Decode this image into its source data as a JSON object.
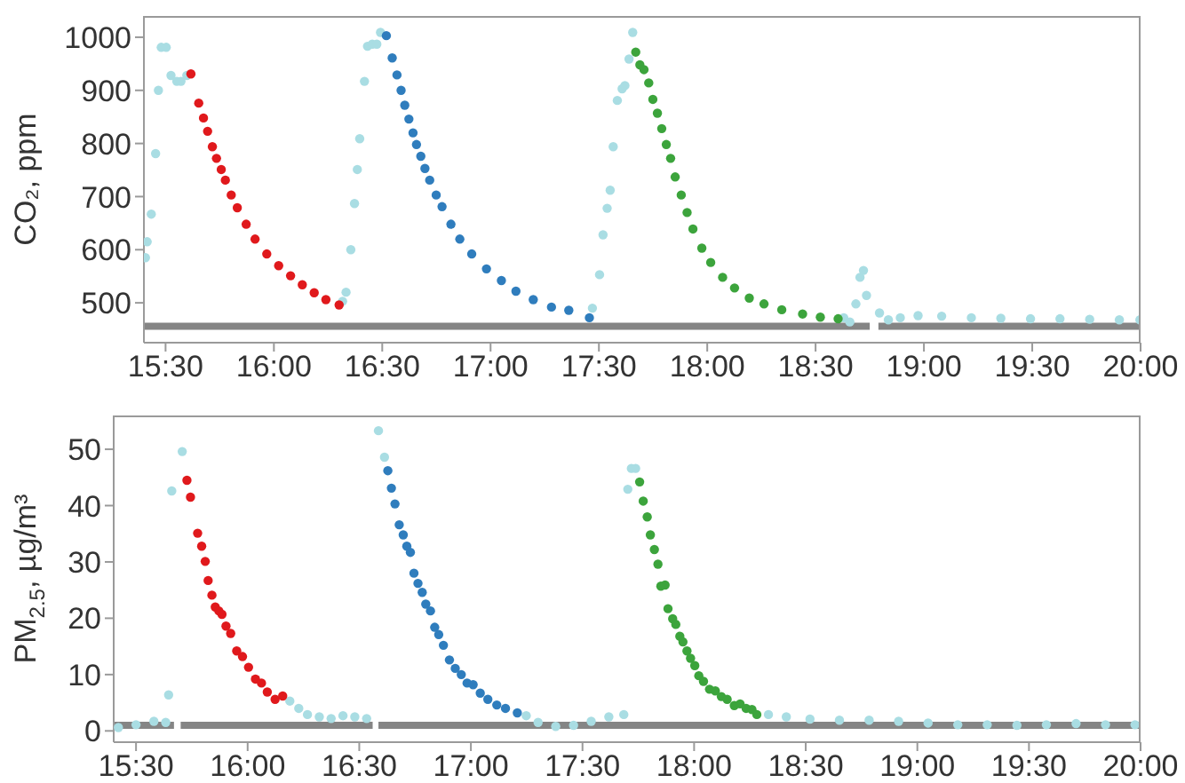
{
  "chart_data": [
    {
      "type": "scatter",
      "ylabel": "CO₂, ppm",
      "marker": "circle",
      "xlim": [
        15.4,
        20
      ],
      "xticks": [
        {
          "value": 15.5,
          "label": "15:30"
        },
        {
          "value": 16,
          "label": "16:00"
        },
        {
          "value": 16.5,
          "label": "16:30"
        },
        {
          "value": 17,
          "label": "17:00"
        },
        {
          "value": 17.5,
          "label": "17:30"
        },
        {
          "value": 18,
          "label": "18:00"
        },
        {
          "value": 18.5,
          "label": "18:30"
        },
        {
          "value": 19,
          "label": "19:00"
        },
        {
          "value": 19.5,
          "label": "19:30"
        },
        {
          "value": 20,
          "label": "20:00"
        }
      ],
      "ylim": [
        425,
        1040
      ],
      "yticks": [
        500,
        600,
        700,
        800,
        900,
        1000
      ],
      "series": [
        {
          "type": "line",
          "marker": "none",
          "color": "#858585",
          "x": [
            15.4,
            18.75,
            18.77,
            18.79,
            20
          ],
          "values": [
            456,
            456,
            null,
            456,
            456
          ]
        },
        {
          "color": "#a9dde3",
          "x": [
            15.407,
            15.415,
            15.434,
            15.454,
            15.467,
            15.48,
            15.503,
            15.525,
            15.552,
            15.571,
            15.598,
            16.317,
            16.333,
            16.355,
            16.372,
            16.385,
            16.396,
            16.418,
            16.432,
            16.454,
            16.475,
            16.492,
            17.47,
            17.503,
            17.519,
            17.538,
            17.552,
            17.566,
            17.585,
            17.607,
            17.62,
            17.639,
            17.656,
            18.63,
            18.658,
            18.686,
            18.705,
            18.721,
            18.735,
            18.795,
            18.836,
            18.891,
            18.973,
            19.082,
            19.219,
            19.355,
            19.492,
            19.628,
            19.765,
            19.902,
            19.997
          ],
          "values": [
            585,
            615,
            667,
            781,
            900,
            981,
            981,
            928,
            917,
            917,
            928,
            503,
            520,
            600,
            687,
            751,
            809,
            917,
            983,
            987,
            987,
            1009,
            490,
            553,
            628,
            678,
            712,
            794,
            881,
            903,
            909,
            959,
            1009,
            472,
            464,
            498,
            548,
            561,
            514,
            481,
            468,
            472,
            476,
            475,
            472,
            471,
            470,
            470,
            469,
            468,
            468
          ]
        },
        {
          "color": "#e0191c",
          "x": [
            15.617,
            15.653,
            15.675,
            15.694,
            15.716,
            15.735,
            15.757,
            15.776,
            15.803,
            15.831,
            15.872,
            15.913,
            15.967,
            16.022,
            16.077,
            16.131,
            16.186,
            16.24,
            16.301
          ],
          "values": [
            931,
            876,
            848,
            823,
            794,
            772,
            751,
            731,
            703,
            679,
            648,
            620,
            592,
            570,
            551,
            534,
            519,
            506,
            496
          ]
        },
        {
          "color": "#2f7dbd",
          "x": [
            16.519,
            16.546,
            16.568,
            16.587,
            16.604,
            16.623,
            16.642,
            16.658,
            16.678,
            16.697,
            16.719,
            16.749,
            16.776,
            16.817,
            16.858,
            16.913,
            16.981,
            17.05,
            17.117,
            17.197,
            17.281,
            17.361,
            17.456
          ],
          "values": [
            1003,
            961,
            929,
            900,
            872,
            846,
            820,
            798,
            776,
            753,
            731,
            703,
            681,
            648,
            620,
            592,
            564,
            542,
            522,
            506,
            492,
            486,
            472
          ]
        },
        {
          "color": "#3ca43c",
          "x": [
            17.67,
            17.689,
            17.708,
            17.73,
            17.749,
            17.77,
            17.79,
            17.811,
            17.831,
            17.852,
            17.88,
            17.907,
            17.934,
            17.975,
            18.016,
            18.071,
            18.126,
            18.194,
            18.262,
            18.344,
            18.44,
            18.522,
            18.604
          ],
          "values": [
            972,
            948,
            939,
            914,
            883,
            857,
            828,
            798,
            772,
            737,
            703,
            670,
            639,
            603,
            576,
            548,
            528,
            509,
            498,
            487,
            479,
            473,
            470
          ]
        }
      ]
    },
    {
      "type": "scatter",
      "ylabel": "PM$_{2.5}$, µg/m³",
      "marker": "circle",
      "xlim": [
        15.4,
        20
      ],
      "xticks": [
        {
          "value": 15.5,
          "label": "15:30"
        },
        {
          "value": 16,
          "label": "16:00"
        },
        {
          "value": 16.5,
          "label": "16:30"
        },
        {
          "value": 17,
          "label": "17:00"
        },
        {
          "value": 17.5,
          "label": "17:30"
        },
        {
          "value": 18,
          "label": "18:00"
        },
        {
          "value": 18.5,
          "label": "18:30"
        },
        {
          "value": 19,
          "label": "19:00"
        },
        {
          "value": 19.5,
          "label": "19:30"
        },
        {
          "value": 20,
          "label": "20:00"
        }
      ],
      "ylim": [
        -2,
        56
      ],
      "yticks": [
        0,
        10,
        20,
        30,
        40,
        50
      ],
      "series": [
        {
          "type": "line",
          "marker": "none",
          "color": "#858585",
          "x": [
            15.4,
            15.67,
            15.685,
            15.7,
            16.56,
            16.573,
            16.586,
            20
          ],
          "values": [
            1,
            1,
            null,
            1,
            1,
            null,
            1,
            1
          ]
        },
        {
          "color": "#a9dde3",
          "x": [
            15.421,
            15.5,
            15.58,
            15.633,
            15.646,
            15.66,
            15.707,
            16.189,
            16.229,
            16.268,
            16.321,
            16.374,
            16.427,
            16.48,
            16.533,
            16.586,
            16.613,
            17.248,
            17.301,
            17.38,
            17.46,
            17.539,
            17.618,
            17.685,
            17.703,
            17.719,
            17.738,
            18.333,
            18.413,
            18.519,
            18.651,
            18.784,
            18.916,
            19.048,
            19.181,
            19.313,
            19.446,
            19.578,
            19.711,
            19.843,
            19.975
          ],
          "values": [
            0.6,
            1.1,
            1.7,
            1.5,
            6.4,
            42.6,
            49.6,
            5.3,
            4,
            2.9,
            2.5,
            2.2,
            2.7,
            2.5,
            2.2,
            53.3,
            48.6,
            2.7,
            1.5,
            0.8,
            1,
            1.7,
            2.5,
            2.9,
            42.9,
            46.6,
            46.6,
            2.9,
            2.5,
            2.1,
            1.9,
            1.9,
            1.7,
            1.4,
            1.1,
            1.1,
            1,
            1.1,
            1.3,
            1.1,
            1.1
          ]
        },
        {
          "color": "#e0191c",
          "x": [
            15.728,
            15.744,
            15.776,
            15.794,
            15.81,
            15.823,
            15.84,
            15.855,
            15.871,
            15.885,
            15.903,
            15.924,
            15.951,
            15.977,
            16.004,
            16.035,
            16.062,
            16.088,
            16.123,
            16.157
          ],
          "values": [
            44.5,
            41.5,
            35.1,
            32.8,
            30.1,
            26.7,
            24.1,
            22,
            21.3,
            20.7,
            18.6,
            17.3,
            14.2,
            13.2,
            11.3,
            9.2,
            8.5,
            6.9,
            5.6,
            6.2
          ]
        },
        {
          "color": "#2f7dbd",
          "x": [
            16.628,
            16.644,
            16.66,
            16.679,
            16.697,
            16.713,
            16.729,
            16.745,
            16.763,
            16.782,
            16.798,
            16.819,
            16.838,
            16.856,
            16.877,
            16.904,
            16.93,
            16.957,
            16.983,
            17.01,
            17.042,
            17.076,
            17.116,
            17.155,
            17.208
          ],
          "values": [
            46.2,
            43.1,
            40.3,
            36.6,
            34.8,
            32.8,
            31.7,
            28,
            26.2,
            24.6,
            22.5,
            21.3,
            18.4,
            17.1,
            15.2,
            12.6,
            11.1,
            10,
            8.5,
            8.2,
            6.7,
            5.6,
            4.6,
            4,
            3.2
          ]
        },
        {
          "color": "#3ca43c",
          "x": [
            17.756,
            17.772,
            17.79,
            17.804,
            17.822,
            17.838,
            17.851,
            17.87,
            17.883,
            17.904,
            17.918,
            17.936,
            17.95,
            17.968,
            17.984,
            18.003,
            18.021,
            18.042,
            18.069,
            18.095,
            18.122,
            18.148,
            18.18,
            18.206,
            18.233,
            18.259,
            18.281
          ],
          "values": [
            44.2,
            40.8,
            38,
            34.8,
            32.2,
            29.6,
            25.7,
            25.9,
            21.7,
            19.9,
            18.9,
            16.8,
            15.8,
            14.2,
            12.9,
            11.6,
            9.8,
            8.8,
            7.4,
            7.1,
            6.1,
            5.6,
            4.5,
            4.8,
            4,
            3.8,
            2.9
          ]
        }
      ]
    }
  ]
}
